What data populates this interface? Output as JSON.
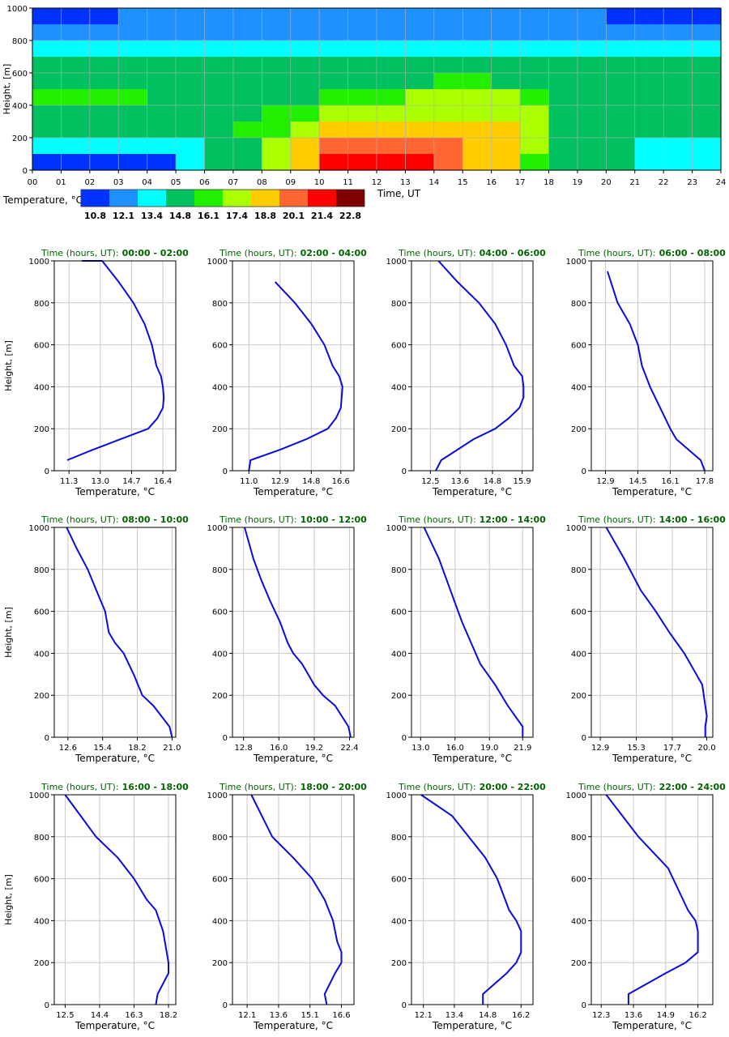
{
  "chart_data": [
    {
      "type": "heatmap",
      "title": "",
      "xlabel": "Time, UT",
      "ylabel": "Height, [m]",
      "xlim": [
        0,
        24
      ],
      "ylim": [
        0,
        1000
      ],
      "x_ticks": [
        "00",
        "01",
        "02",
        "03",
        "04",
        "05",
        "06",
        "07",
        "08",
        "09",
        "10",
        "11",
        "12",
        "13",
        "14",
        "15",
        "16",
        "17",
        "18",
        "19",
        "20",
        "21",
        "22",
        "23",
        "24"
      ],
      "y_ticks": [
        "0",
        "200",
        "400",
        "600",
        "800",
        "1000"
      ],
      "colorbar": {
        "label": "Temperature, °C",
        "colors": [
          "#0033ff",
          "#1e90ff",
          "#00ffff",
          "#00c060",
          "#22ee00",
          "#aaff00",
          "#ffcc00",
          "#ff6633",
          "#ff0000",
          "#800000"
        ],
        "tick_labels": [
          "10.8",
          "12.1",
          "13.4",
          "14.8",
          "16.1",
          "17.4",
          "18.8",
          "20.1",
          "21.4",
          "22.8"
        ]
      },
      "heights_m": [
        950,
        850,
        750,
        650,
        550,
        450,
        350,
        250,
        150,
        50
      ],
      "hours_utc": [
        "00",
        "01",
        "02",
        "03",
        "04",
        "05",
        "06",
        "07",
        "08",
        "09",
        "10",
        "11",
        "12",
        "13",
        "14",
        "15",
        "16",
        "17",
        "18",
        "19",
        "20",
        "21",
        "22",
        "23"
      ],
      "class_index_grid": [
        [
          0,
          0,
          0,
          1,
          1,
          1,
          1,
          1,
          1,
          1,
          1,
          1,
          1,
          1,
          1,
          1,
          1,
          1,
          1,
          1,
          0,
          0,
          0,
          0
        ],
        [
          1,
          1,
          1,
          1,
          1,
          1,
          1,
          1,
          1,
          1,
          1,
          1,
          1,
          1,
          1,
          1,
          1,
          1,
          1,
          1,
          1,
          1,
          1,
          1
        ],
        [
          2,
          2,
          2,
          2,
          2,
          2,
          2,
          2,
          2,
          2,
          2,
          2,
          2,
          2,
          2,
          2,
          2,
          2,
          2,
          2,
          2,
          2,
          2,
          2
        ],
        [
          3,
          3,
          3,
          3,
          3,
          3,
          3,
          3,
          3,
          3,
          3,
          3,
          3,
          3,
          3,
          3,
          3,
          3,
          3,
          3,
          3,
          3,
          3,
          3
        ],
        [
          3,
          3,
          3,
          3,
          3,
          3,
          3,
          3,
          3,
          3,
          3,
          3,
          3,
          3,
          4,
          4,
          3,
          3,
          3,
          3,
          3,
          3,
          3,
          3
        ],
        [
          4,
          4,
          4,
          4,
          3,
          3,
          3,
          3,
          3,
          3,
          4,
          4,
          4,
          5,
          5,
          5,
          5,
          4,
          3,
          3,
          3,
          3,
          3,
          3
        ],
        [
          3,
          3,
          3,
          3,
          3,
          3,
          3,
          3,
          4,
          4,
          5,
          5,
          5,
          5,
          5,
          5,
          5,
          5,
          3,
          3,
          3,
          3,
          3,
          3
        ],
        [
          3,
          3,
          3,
          3,
          3,
          3,
          3,
          4,
          4,
          5,
          6,
          6,
          6,
          6,
          6,
          6,
          6,
          5,
          3,
          3,
          3,
          3,
          3,
          3
        ],
        [
          2,
          2,
          2,
          2,
          2,
          2,
          3,
          3,
          5,
          6,
          7,
          7,
          7,
          7,
          7,
          6,
          6,
          5,
          3,
          3,
          3,
          2,
          2,
          2
        ],
        [
          0,
          0,
          0,
          0,
          0,
          2,
          3,
          3,
          5,
          6,
          8,
          8,
          8,
          8,
          7,
          6,
          6,
          4,
          3,
          3,
          3,
          2,
          2,
          2
        ]
      ]
    },
    {
      "type": "line",
      "title_prefix": "Time (hours, UT):",
      "title_range": "00:00 - 02:00",
      "xlabel": "Temperature, °C",
      "ylabel": "Height, [m]",
      "xlim": [
        10.5,
        17.1
      ],
      "xticks": [
        11.3,
        13.0,
        14.7,
        16.4
      ],
      "ylim": [
        0,
        1000
      ],
      "yticks": [
        0,
        200,
        400,
        600,
        800,
        1000
      ],
      "x": [
        11.2,
        12.6,
        14.1,
        15.6,
        16.1,
        16.4,
        16.45,
        16.4,
        16.3,
        16.05,
        15.8,
        15.4,
        14.8,
        14.0,
        13.1,
        12.0
      ],
      "y": [
        50,
        100,
        150,
        200,
        250,
        300,
        350,
        400,
        450,
        500,
        600,
        700,
        800,
        900,
        1000,
        1000
      ]
    },
    {
      "type": "line",
      "title_prefix": "Time (hours, UT):",
      "title_range": "02:00 - 04:00",
      "xlabel": "Temperature, °C",
      "ylabel": "Height, [m]",
      "xlim": [
        10.0,
        17.4
      ],
      "xticks": [
        11.0,
        12.9,
        14.8,
        16.6
      ],
      "ylim": [
        0,
        1000
      ],
      "yticks": [
        0,
        200,
        400,
        600,
        800,
        1000
      ],
      "x": [
        11.0,
        11.1,
        12.9,
        14.5,
        15.8,
        16.3,
        16.6,
        16.7,
        16.5,
        16.1,
        15.6,
        14.8,
        13.8,
        12.6
      ],
      "y": [
        0,
        50,
        100,
        150,
        200,
        250,
        300,
        400,
        450,
        500,
        600,
        700,
        800,
        900
      ]
    },
    {
      "type": "line",
      "title_prefix": "Time (hours, UT):",
      "title_range": "04:00 - 06:00",
      "xlabel": "Temperature, °C",
      "ylabel": "Height, [m]",
      "xlim": [
        11.8,
        16.3
      ],
      "xticks": [
        12.5,
        13.6,
        14.8,
        15.9
      ],
      "ylim": [
        0,
        1000
      ],
      "yticks": [
        0,
        200,
        400,
        600,
        800,
        1000
      ],
      "x": [
        12.7,
        12.9,
        13.5,
        14.1,
        14.9,
        15.4,
        15.8,
        15.95,
        15.95,
        15.9,
        15.6,
        15.3,
        14.9,
        14.3,
        13.5,
        12.8
      ],
      "y": [
        0,
        50,
        100,
        150,
        200,
        250,
        300,
        350,
        400,
        450,
        500,
        600,
        700,
        800,
        900,
        1000
      ]
    },
    {
      "type": "line",
      "title_prefix": "Time (hours, UT):",
      "title_range": "06:00 - 08:00",
      "xlabel": "Temperature, °C",
      "ylabel": "Height, [m]",
      "xlim": [
        12.2,
        18.2
      ],
      "xticks": [
        12.9,
        14.5,
        16.1,
        17.8
      ],
      "ylim": [
        0,
        1000
      ],
      "yticks": [
        0,
        200,
        400,
        600,
        800,
        1000
      ],
      "x": [
        17.8,
        17.6,
        16.4,
        16.1,
        15.6,
        15.1,
        14.9,
        14.7,
        14.5,
        14.1,
        13.5,
        13.0
      ],
      "y": [
        0,
        50,
        150,
        200,
        300,
        400,
        450,
        500,
        600,
        700,
        800,
        950
      ]
    },
    {
      "type": "line",
      "title_prefix": "Time (hours, UT):",
      "title_range": "08:00 - 10:00",
      "xlabel": "Temperature, °C",
      "ylabel": "Height, [m]",
      "xlim": [
        11.5,
        21.3
      ],
      "xticks": [
        12.6,
        15.4,
        18.2,
        21.0
      ],
      "ylim": [
        0,
        1000
      ],
      "yticks": [
        0,
        200,
        400,
        600,
        800,
        1000
      ],
      "x": [
        21.0,
        20.8,
        19.5,
        18.6,
        17.9,
        17.1,
        16.4,
        15.9,
        15.6,
        14.9,
        14.2,
        13.3,
        12.5
      ],
      "y": [
        0,
        50,
        150,
        200,
        300,
        400,
        450,
        500,
        600,
        700,
        800,
        900,
        1000
      ]
    },
    {
      "type": "line",
      "title_prefix": "Time (hours, UT):",
      "title_range": "10:00 - 12:00",
      "xlabel": "Temperature, °C",
      "ylabel": "Height, [m]",
      "xlim": [
        11.8,
        22.8
      ],
      "xticks": [
        12.8,
        16.0,
        19.2,
        22.4
      ],
      "ylim": [
        0,
        1000
      ],
      "yticks": [
        0,
        200,
        400,
        600,
        800,
        1000
      ],
      "x": [
        22.5,
        22.3,
        21.1,
        20.0,
        19.2,
        18.1,
        17.3,
        16.8,
        16.1,
        15.2,
        14.4,
        13.7,
        12.9
      ],
      "y": [
        0,
        50,
        150,
        200,
        250,
        350,
        400,
        450,
        550,
        650,
        750,
        850,
        1000
      ]
    },
    {
      "type": "line",
      "title_prefix": "Time (hours, UT):",
      "title_range": "12:00 - 14:00",
      "xlabel": "Temperature, °C",
      "ylabel": "Height, [m]",
      "xlim": [
        12.2,
        22.8
      ],
      "xticks": [
        13.0,
        16.0,
        19.0,
        21.9
      ],
      "ylim": [
        0,
        1000
      ],
      "yticks": [
        0,
        200,
        400,
        600,
        800,
        1000
      ],
      "x": [
        21.9,
        21.9,
        20.6,
        19.5,
        18.2,
        17.4,
        16.6,
        15.6,
        14.6,
        13.3
      ],
      "y": [
        0,
        50,
        150,
        250,
        350,
        450,
        550,
        700,
        850,
        1000
      ]
    },
    {
      "type": "line",
      "title_prefix": "Time (hours, UT):",
      "title_range": "14:00 - 16:00",
      "xlabel": "Temperature, °C",
      "ylabel": "Height, [m]",
      "xlim": [
        12.3,
        20.4
      ],
      "xticks": [
        12.9,
        15.3,
        17.7,
        20.0
      ],
      "ylim": [
        0,
        1000
      ],
      "yticks": [
        0,
        200,
        400,
        600,
        800,
        1000
      ],
      "x": [
        19.9,
        19.9,
        20.0,
        19.9,
        19.7,
        19.3,
        18.5,
        17.5,
        16.6,
        15.6,
        14.5,
        13.3
      ],
      "y": [
        0,
        50,
        100,
        150,
        250,
        300,
        400,
        500,
        600,
        700,
        850,
        1000
      ]
    },
    {
      "type": "line",
      "title_prefix": "Time (hours, UT):",
      "title_range": "16:00 - 18:00",
      "xlabel": "Temperature, °C",
      "ylabel": "Height, [m]",
      "xlim": [
        11.9,
        18.6
      ],
      "xticks": [
        12.5,
        14.4,
        16.3,
        18.2
      ],
      "ylim": [
        0,
        1000
      ],
      "yticks": [
        0,
        200,
        400,
        600,
        800,
        1000
      ],
      "x": [
        17.5,
        17.6,
        18.2,
        18.2,
        18.1,
        17.9,
        17.5,
        17.0,
        16.3,
        15.4,
        14.2,
        12.5
      ],
      "y": [
        0,
        50,
        150,
        200,
        250,
        350,
        450,
        500,
        600,
        700,
        800,
        1000
      ]
    },
    {
      "type": "line",
      "title_prefix": "Time (hours, UT):",
      "title_range": "18:00 - 20:00",
      "xlabel": "Temperature, °C",
      "ylabel": "Height, [m]",
      "xlim": [
        11.4,
        17.2
      ],
      "xticks": [
        12.1,
        13.6,
        15.1,
        16.6
      ],
      "ylim": [
        0,
        1000
      ],
      "yticks": [
        0,
        200,
        400,
        600,
        800,
        1000
      ],
      "x": [
        15.9,
        15.8,
        16.3,
        16.6,
        16.6,
        16.4,
        16.2,
        15.8,
        15.2,
        14.3,
        13.3,
        12.3
      ],
      "y": [
        0,
        50,
        150,
        200,
        250,
        300,
        400,
        500,
        600,
        700,
        800,
        1000
      ]
    },
    {
      "type": "line",
      "title_prefix": "Time (hours, UT):",
      "title_range": "20:00 - 22:00",
      "xlabel": "Temperature, °C",
      "ylabel": "Height, [m]",
      "xlim": [
        11.6,
        16.7
      ],
      "xticks": [
        12.1,
        13.4,
        14.8,
        16.2
      ],
      "ylim": [
        0,
        1000
      ],
      "yticks": [
        0,
        200,
        400,
        600,
        800,
        1000
      ],
      "x": [
        14.6,
        14.6,
        15.6,
        16.0,
        16.2,
        16.2,
        16.0,
        15.7,
        15.2,
        14.7,
        14.0,
        13.3,
        12.0
      ],
      "y": [
        0,
        50,
        150,
        200,
        250,
        350,
        400,
        450,
        600,
        700,
        800,
        900,
        1000
      ]
    },
    {
      "type": "line",
      "title_prefix": "Time (hours, UT):",
      "title_range": "22:00 - 24:00",
      "xlabel": "Temperature, °C",
      "ylabel": "Height, [m]",
      "xlim": [
        11.9,
        16.8
      ],
      "xticks": [
        12.3,
        13.6,
        14.9,
        16.2
      ],
      "ylim": [
        0,
        1000
      ],
      "yticks": [
        0,
        200,
        400,
        600,
        800,
        1000
      ],
      "x": [
        13.4,
        13.4,
        14.9,
        15.7,
        16.2,
        16.2,
        16.1,
        15.8,
        15.0,
        13.8,
        12.5
      ],
      "y": [
        0,
        50,
        150,
        200,
        250,
        350,
        400,
        450,
        650,
        800,
        1000
      ]
    }
  ]
}
